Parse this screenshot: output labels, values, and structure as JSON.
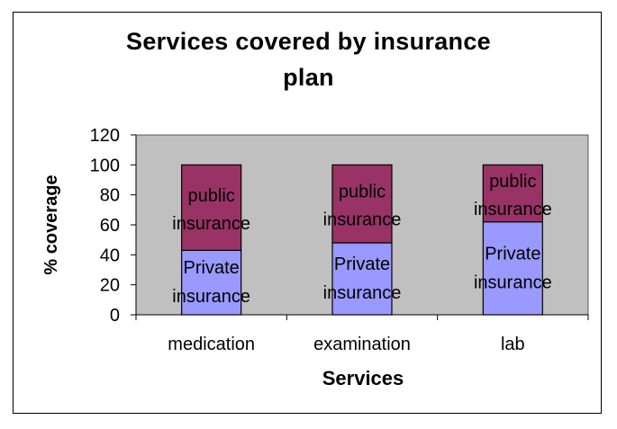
{
  "chart_data": {
    "type": "bar",
    "stacked": true,
    "title_lines": [
      "Services covered by insurance",
      "plan"
    ],
    "xlabel": "Services",
    "ylabel": "% coverage",
    "ylim": [
      0,
      120
    ],
    "yticks": [
      "0",
      "20",
      "40",
      "60",
      "80",
      "100",
      "120"
    ],
    "grid": false,
    "categories": [
      "medication",
      "examination",
      "lab"
    ],
    "series": [
      {
        "name": "Private insurance",
        "label_lines": [
          "Private",
          "insurance"
        ],
        "color": "#9999ff",
        "values": [
          43,
          48,
          62
        ]
      },
      {
        "name": "public insurance",
        "label_lines": [
          "public",
          "insurance"
        ],
        "color": "#993366",
        "values": [
          57,
          52,
          38
        ]
      }
    ],
    "plot_background": "#c0c0c0"
  }
}
